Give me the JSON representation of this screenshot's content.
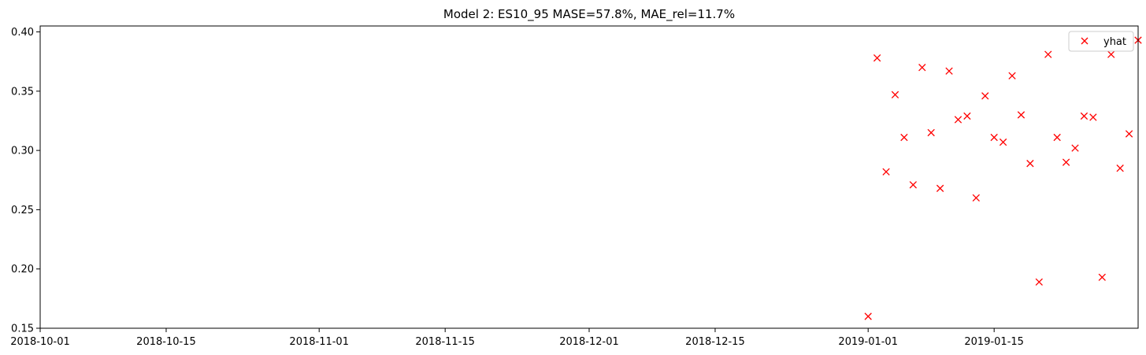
{
  "chart_data": {
    "type": "scatter",
    "title": "Model 2: ES10_95 MASE=57.8%, MAE_rel=11.7%",
    "xlabel": "",
    "ylabel": "",
    "xlim": [
      "2018-10-01",
      "2019-01-31"
    ],
    "ylim": [
      0.15,
      0.405
    ],
    "x_ticks": [
      "2018-10-01",
      "2018-10-15",
      "2018-11-01",
      "2018-11-15",
      "2018-12-01",
      "2018-12-15",
      "2019-01-01",
      "2019-01-15"
    ],
    "y_ticks": [
      "0.15",
      "0.20",
      "0.25",
      "0.30",
      "0.35",
      "0.40"
    ],
    "grid": false,
    "legend": {
      "position": "top-right",
      "entries": [
        "yhat"
      ]
    },
    "series": [
      {
        "name": "yhat",
        "marker": "x",
        "color": "#ff0000",
        "x": [
          "2019-01-01",
          "2019-01-02",
          "2019-01-03",
          "2019-01-04",
          "2019-01-05",
          "2019-01-06",
          "2019-01-07",
          "2019-01-08",
          "2019-01-09",
          "2019-01-10",
          "2019-01-11",
          "2019-01-12",
          "2019-01-13",
          "2019-01-14",
          "2019-01-15",
          "2019-01-16",
          "2019-01-17",
          "2019-01-18",
          "2019-01-19",
          "2019-01-20",
          "2019-01-21",
          "2019-01-22",
          "2019-01-23",
          "2019-01-24",
          "2019-01-25",
          "2019-01-26",
          "2019-01-27",
          "2019-01-28",
          "2019-01-29",
          "2019-01-30",
          "2019-01-31"
        ],
        "y": [
          0.16,
          0.378,
          0.282,
          0.347,
          0.311,
          0.271,
          0.37,
          0.315,
          0.268,
          0.367,
          0.326,
          0.329,
          0.26,
          0.346,
          0.311,
          0.307,
          0.363,
          0.33,
          0.289,
          0.189,
          0.381,
          0.311,
          0.29,
          0.302,
          0.329,
          0.328,
          0.193,
          0.381,
          0.285,
          0.314,
          0.393
        ]
      }
    ]
  }
}
